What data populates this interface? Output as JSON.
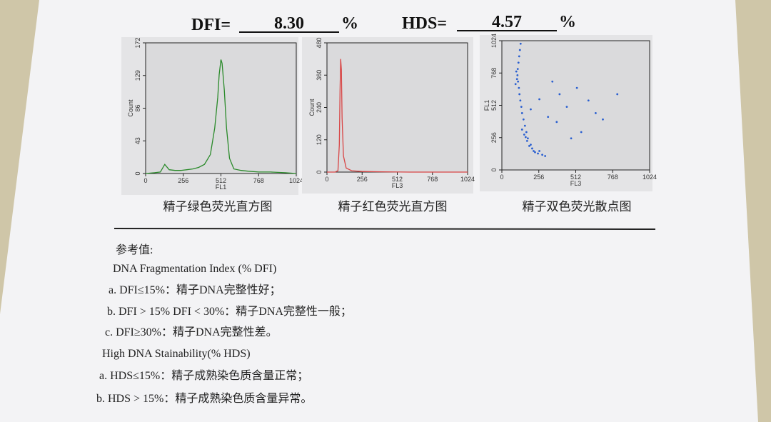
{
  "header": {
    "dfi_label": "DFI=",
    "dfi_value": "8.30",
    "dfi_unit": "%",
    "hds_label": "HDS=",
    "hds_value": "4.57",
    "hds_unit": "%"
  },
  "chart_data": [
    {
      "type": "line",
      "caption": "精子绿色荧光直方图",
      "xlabel": "FL1",
      "ylabel": "Count",
      "color": "#2a8a2a",
      "xlim": [
        0,
        1024
      ],
      "ylim": [
        0,
        172
      ],
      "xticks": [
        0,
        256,
        512,
        768,
        1024
      ],
      "yticks": [
        0,
        43,
        86,
        129,
        172
      ],
      "x": [
        0,
        60,
        100,
        130,
        160,
        200,
        240,
        280,
        320,
        360,
        400,
        440,
        470,
        490,
        500,
        512,
        520,
        535,
        550,
        570,
        600,
        650,
        700,
        768,
        850,
        950,
        1024
      ],
      "values": [
        0,
        1,
        2,
        12,
        5,
        4,
        4,
        5,
        6,
        8,
        12,
        25,
        60,
        100,
        130,
        150,
        145,
        110,
        60,
        20,
        6,
        4,
        3,
        2,
        2,
        1,
        0
      ]
    },
    {
      "type": "line",
      "caption": "精子红色荧光直方图",
      "xlabel": "FL3",
      "ylabel": "Count",
      "color": "#d84545",
      "xlim": [
        0,
        1024
      ],
      "ylim": [
        0,
        480
      ],
      "xticks": [
        0,
        256,
        512,
        768,
        1024
      ],
      "yticks": [
        0,
        120,
        240,
        360,
        480
      ],
      "x": [
        0,
        60,
        80,
        90,
        95,
        100,
        105,
        110,
        120,
        140,
        180,
        256,
        400,
        600,
        800,
        1024
      ],
      "values": [
        0,
        0,
        5,
        100,
        300,
        420,
        380,
        200,
        60,
        15,
        5,
        2,
        1,
        0,
        0,
        0
      ]
    },
    {
      "type": "scatter",
      "caption": "精子双色荧光散点图",
      "xlabel": "FL3",
      "ylabel": "FL1",
      "color": "#2a5fd0",
      "xlim": [
        0,
        1024
      ],
      "ylim": [
        0,
        1024
      ],
      "xticks": [
        0,
        256,
        512,
        768,
        1024
      ],
      "yticks": [
        0,
        256,
        512,
        768,
        1024
      ],
      "x": [
        130,
        125,
        120,
        115,
        110,
        108,
        112,
        118,
        122,
        128,
        135,
        140,
        100,
        105,
        95,
        150,
        160,
        170,
        180,
        200,
        220,
        250,
        280,
        300,
        140,
        155,
        165,
        175,
        190,
        210,
        230,
        260,
        350,
        400,
        450,
        520,
        600,
        650,
        700,
        800,
        550,
        480,
        380,
        320,
        260,
        200
      ],
      "values": [
        1000,
        950,
        900,
        850,
        800,
        750,
        700,
        650,
        600,
        550,
        500,
        450,
        780,
        720,
        680,
        400,
        350,
        300,
        250,
        200,
        150,
        130,
        120,
        110,
        320,
        280,
        260,
        230,
        190,
        170,
        140,
        150,
        700,
        600,
        500,
        650,
        550,
        450,
        400,
        600,
        300,
        250,
        380,
        420,
        560,
        480
      ]
    }
  ],
  "reference": {
    "title": "参考值:",
    "dfi_heading": "DNA Fragmentation Index (% DFI)",
    "dfi_items": [
      "a. DFI≤15%：精子DNA完整性好；",
      "b. DFI > 15% DFI < 30%：精子DNA完整性一般；",
      "c. DFI≥30%：精子DNA完整性差。"
    ],
    "hds_heading": "High DNA Stainability(% HDS)",
    "hds_items": [
      "a. HDS≤15%：精子成熟染色质含量正常；",
      "b. HDS > 15%：精子成熟染色质含量异常。"
    ]
  }
}
